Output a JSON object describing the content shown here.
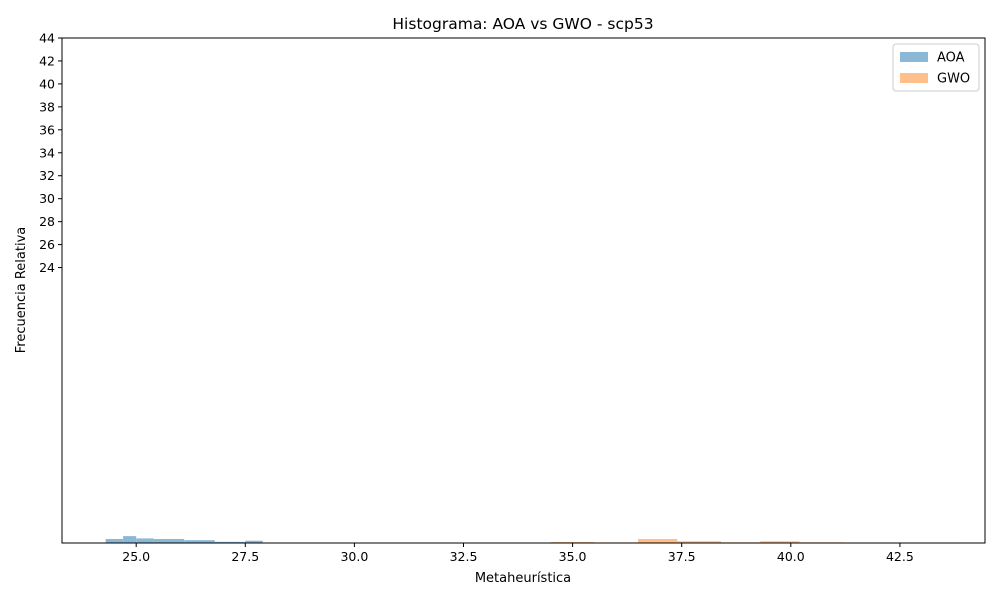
{
  "chart_data": {
    "type": "bar",
    "title": "Histograma: AOA vs GWO - scp53",
    "xlabel": "Metaheurística",
    "ylabel": "Frecuencia Relativa",
    "xlim": [
      23.3,
      44.45
    ],
    "ylim": [
      0,
      44
    ],
    "x_ticks": [
      "25.0",
      "27.5",
      "30.0",
      "32.5",
      "35.0",
      "37.5",
      "40.0",
      "42.5"
    ],
    "y_ticks": [
      "24",
      "26",
      "28",
      "30",
      "32",
      "34",
      "36",
      "38",
      "40",
      "42",
      "44"
    ],
    "grid": false,
    "legend_position": "top-right",
    "series": [
      {
        "name": "AOA",
        "color": "#8cb8d8",
        "bins": [
          {
            "x0": 24.3,
            "x1": 24.7,
            "value": 0.35
          },
          {
            "x0": 24.7,
            "x1": 25.0,
            "value": 0.6
          },
          {
            "x0": 25.0,
            "x1": 25.4,
            "value": 0.4
          },
          {
            "x0": 25.4,
            "x1": 26.1,
            "value": 0.35
          },
          {
            "x0": 26.1,
            "x1": 26.8,
            "value": 0.25
          },
          {
            "x0": 26.8,
            "x1": 27.5,
            "value": 0.1
          },
          {
            "x0": 27.5,
            "x1": 27.9,
            "value": 0.2
          }
        ]
      },
      {
        "name": "GWO",
        "color": "#ffbf8a",
        "bins": [
          {
            "x0": 34.5,
            "x1": 35.5,
            "value": 0.08
          },
          {
            "x0": 35.5,
            "x1": 36.5,
            "value": 0.05
          },
          {
            "x0": 36.5,
            "x1": 37.4,
            "value": 0.35
          },
          {
            "x0": 37.4,
            "x1": 38.4,
            "value": 0.15
          },
          {
            "x0": 38.4,
            "x1": 39.3,
            "value": 0.06
          },
          {
            "x0": 39.3,
            "x1": 40.2,
            "value": 0.15
          },
          {
            "x0": 40.2,
            "x1": 41.2,
            "value": 0.06
          },
          {
            "x0": 41.2,
            "x1": 42.1,
            "value": 0.04
          },
          {
            "x0": 42.1,
            "x1": 43.1,
            "value": 0.04
          },
          {
            "x0": 43.1,
            "x1": 44.0,
            "value": 0.04
          }
        ]
      }
    ]
  }
}
